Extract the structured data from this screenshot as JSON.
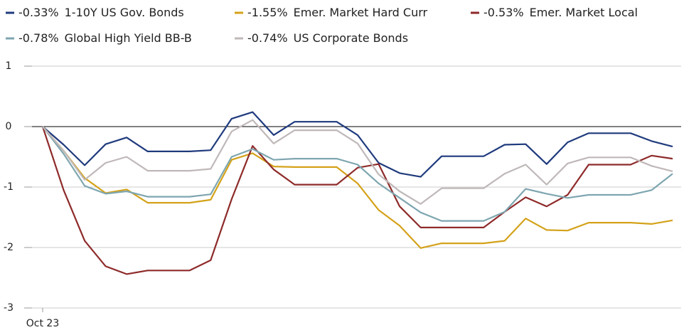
{
  "chart_data": {
    "type": "line",
    "categories": [
      "Oct 23",
      null,
      null,
      null,
      null,
      null,
      null,
      null,
      null,
      null,
      null,
      null,
      null,
      null,
      null,
      null,
      null,
      null,
      null,
      null,
      null,
      null,
      null,
      null,
      null,
      null,
      null,
      null,
      null,
      null,
      null
    ],
    "ylim": [
      -3,
      1
    ],
    "yticks": [
      -3,
      -2,
      -1,
      0,
      1
    ],
    "grid": true,
    "zero_line": true,
    "series": [
      {
        "name": "1-10Y US Gov. Bonds",
        "legend_label": "-0.33%",
        "color": "#1f3a7d",
        "values": [
          0,
          -0.3,
          -0.64,
          -0.29,
          -0.18,
          -0.41,
          -0.41,
          -0.41,
          -0.39,
          0.13,
          0.24,
          -0.14,
          0.08,
          0.08,
          0.08,
          -0.14,
          -0.6,
          -0.77,
          -0.83,
          -0.49,
          -0.49,
          -0.49,
          -0.3,
          -0.29,
          -0.62,
          -0.26,
          -0.11,
          -0.11,
          -0.11,
          -0.24,
          -0.33
        ]
      },
      {
        "name": "Emer. Market Hard Curr",
        "legend_label": "-1.55%",
        "color": "#d4a21a",
        "values": [
          0,
          -0.4,
          -0.85,
          -1.1,
          -1.04,
          -1.26,
          -1.26,
          -1.26,
          -1.21,
          -0.55,
          -0.44,
          -0.66,
          -0.67,
          -0.67,
          -0.67,
          -0.94,
          -1.38,
          -1.64,
          -2.01,
          -1.93,
          -1.93,
          -1.93,
          -1.89,
          -1.52,
          -1.71,
          -1.72,
          -1.59,
          -1.59,
          -1.59,
          -1.61,
          -1.55
        ]
      },
      {
        "name": "Emer. Market Local",
        "legend_label": "-0.53%",
        "color": "#8e2a2a",
        "values": [
          0,
          -1.05,
          -1.89,
          -2.31,
          -2.44,
          -2.38,
          -2.38,
          -2.38,
          -2.21,
          -1.2,
          -0.32,
          -0.71,
          -0.96,
          -0.96,
          -0.96,
          -0.68,
          -0.62,
          -1.32,
          -1.67,
          -1.67,
          -1.67,
          -1.67,
          -1.41,
          -1.17,
          -1.32,
          -1.13,
          -0.63,
          -0.63,
          -0.63,
          -0.48,
          -0.53
        ]
      },
      {
        "name": "Global High Yield BB-B",
        "legend_label": "-0.78%",
        "color": "#7ea6b0",
        "values": [
          0,
          -0.45,
          -0.98,
          -1.11,
          -1.07,
          -1.16,
          -1.16,
          -1.16,
          -1.12,
          -0.5,
          -0.37,
          -0.55,
          -0.53,
          -0.53,
          -0.53,
          -0.63,
          -0.94,
          -1.18,
          -1.42,
          -1.56,
          -1.56,
          -1.56,
          -1.41,
          -1.03,
          -1.11,
          -1.18,
          -1.13,
          -1.13,
          -1.13,
          -1.05,
          -0.78
        ]
      },
      {
        "name": "US Corporate Bonds",
        "legend_label": "-0.74%",
        "color": "#c0b8b8",
        "values": [
          0,
          -0.4,
          -0.88,
          -0.6,
          -0.5,
          -0.73,
          -0.73,
          -0.73,
          -0.7,
          -0.08,
          0.11,
          -0.28,
          -0.06,
          -0.06,
          -0.06,
          -0.28,
          -0.79,
          -1.07,
          -1.28,
          -1.02,
          -1.02,
          -1.02,
          -0.78,
          -0.63,
          -0.96,
          -0.61,
          -0.51,
          -0.51,
          -0.51,
          -0.65,
          -0.74
        ]
      }
    ]
  }
}
